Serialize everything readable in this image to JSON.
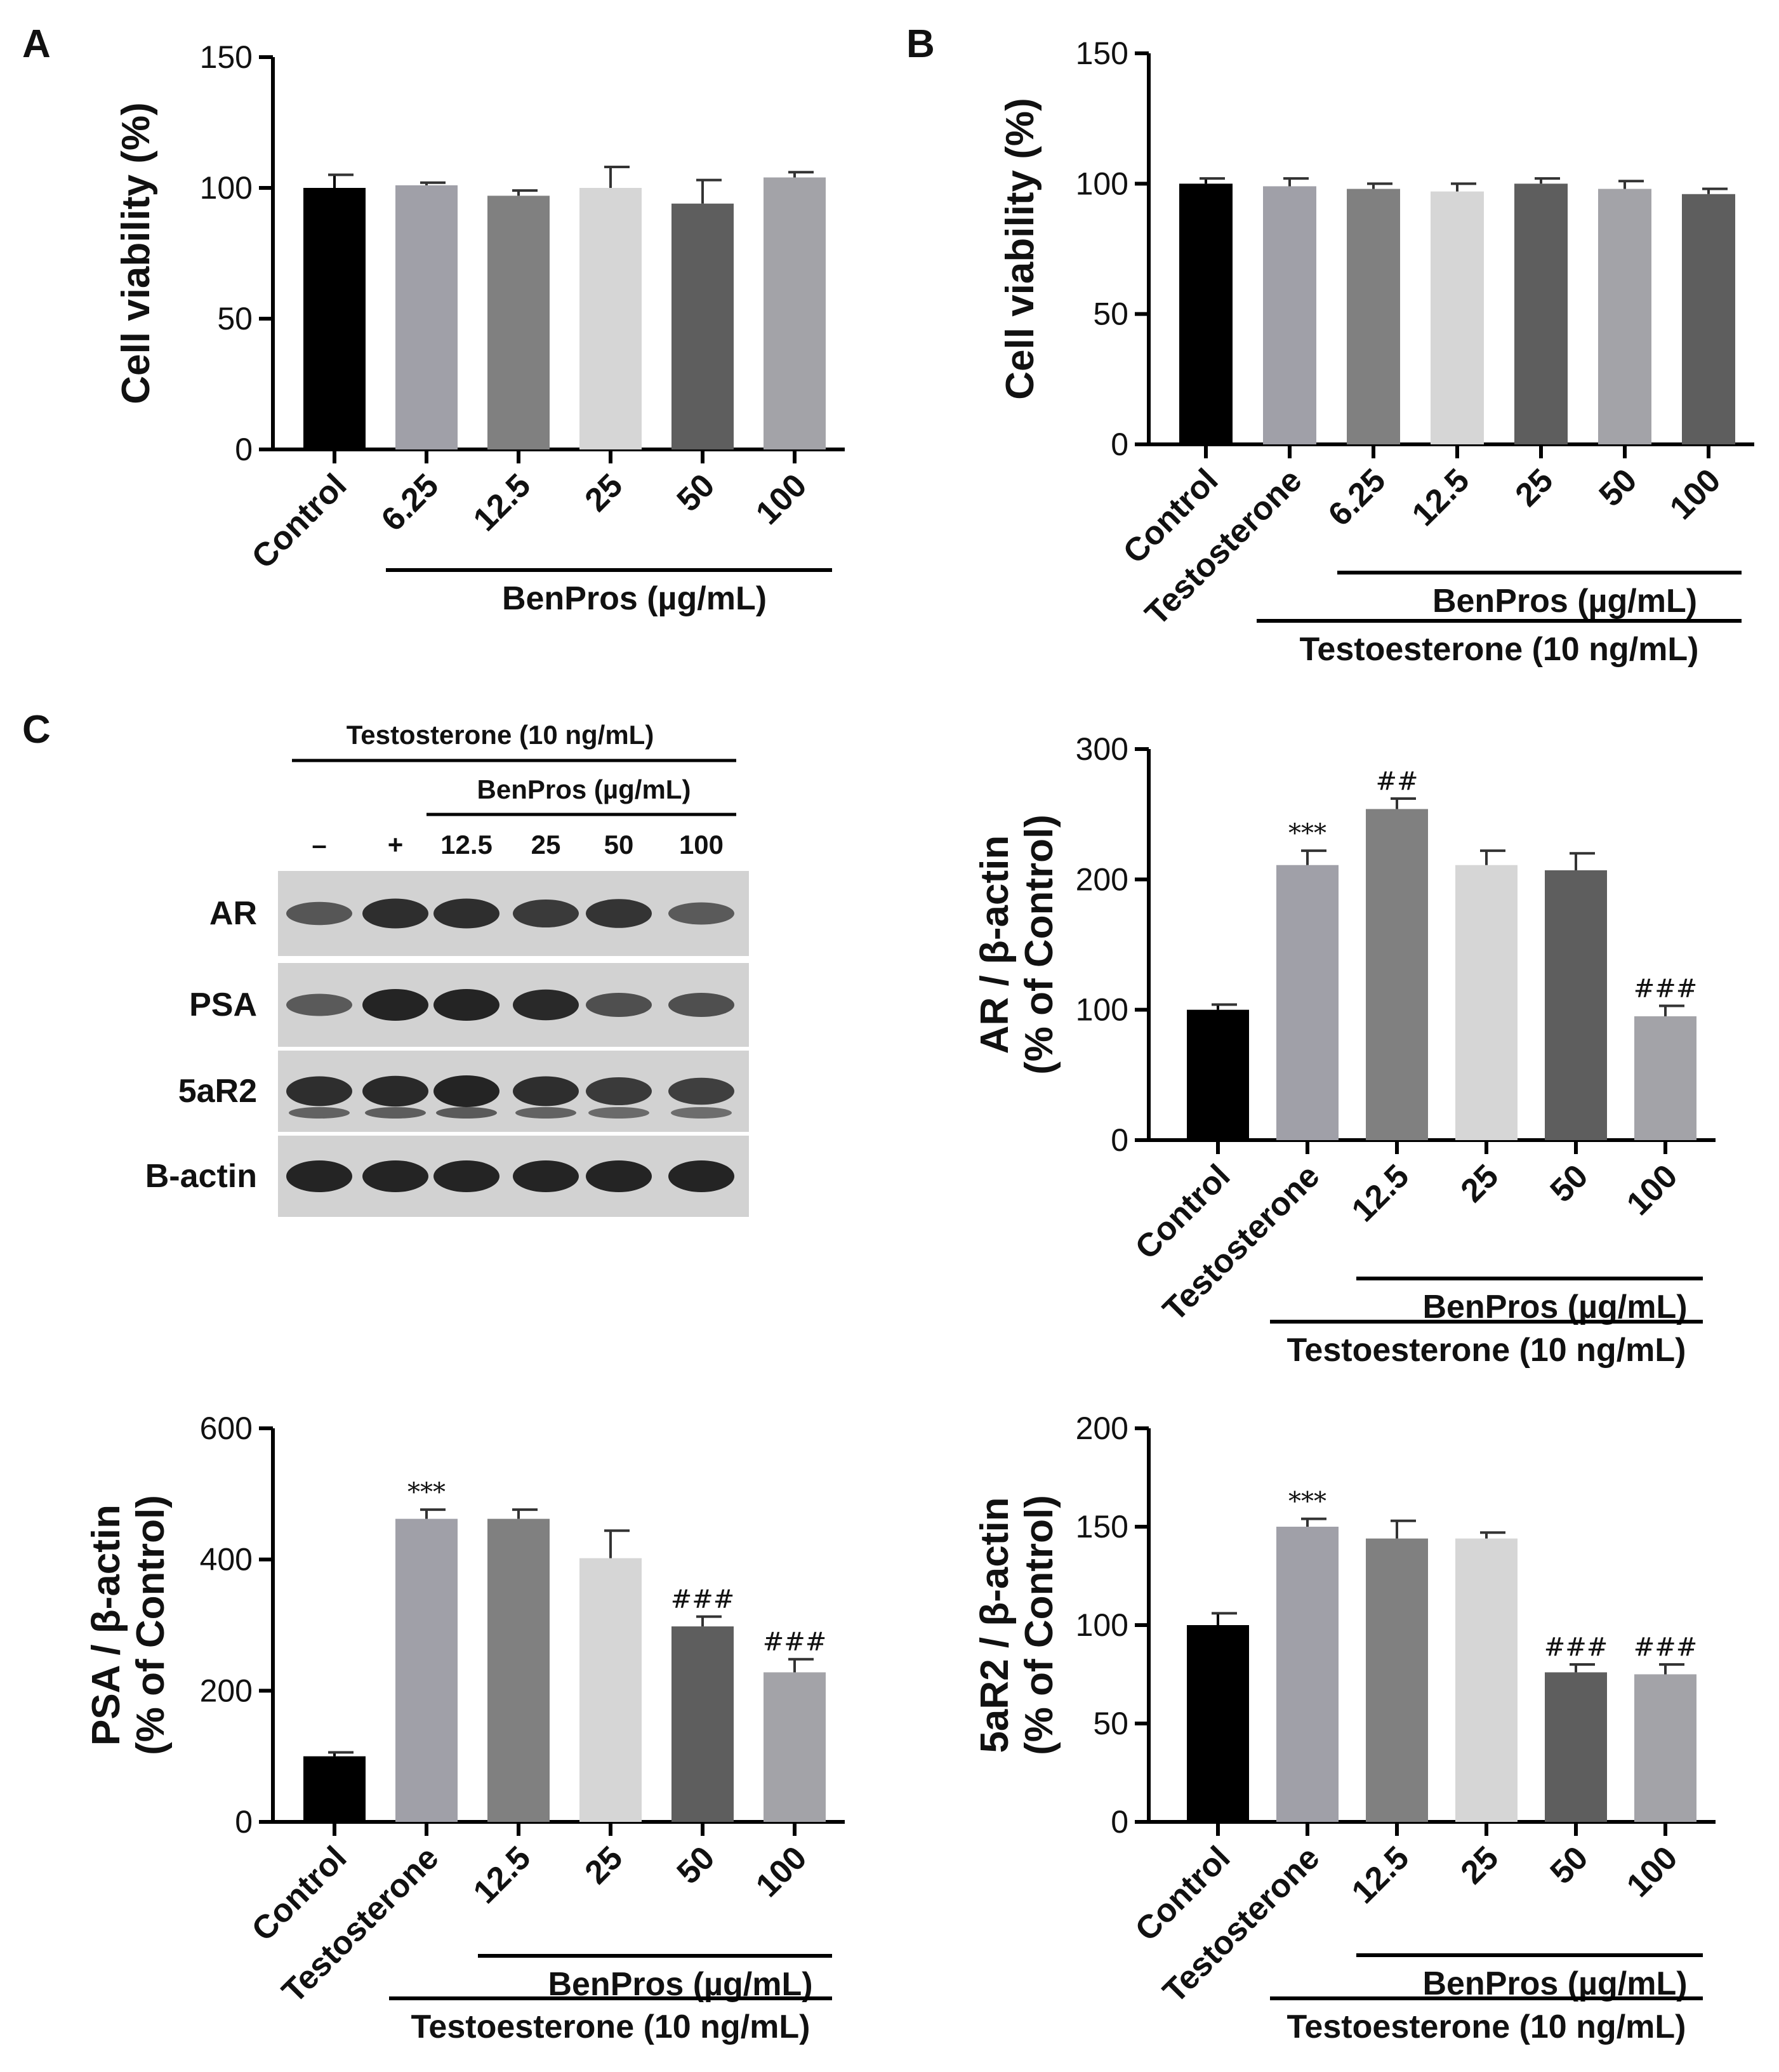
{
  "panels": {
    "a": "A",
    "b": "B",
    "c": "C"
  },
  "colors": {
    "black": "#000000",
    "light_gray": "#a0a0a8",
    "mid_gray": "#808080",
    "pale_gray": "#d6d6d6",
    "dark_gray": "#5e5e5e",
    "gray2": "#a3a3a8"
  },
  "blot": {
    "header": "Testosterone (10 ng/mL)",
    "sub_header": "BenPros (µg/mL)",
    "lanes": [
      "–",
      "+",
      "12.5",
      "25",
      "50",
      "100"
    ],
    "rows": [
      "AR",
      "PSA",
      "5aR2",
      "B-actin"
    ]
  },
  "chart_data": [
    {
      "id": "A",
      "type": "bar",
      "ylabel": "Cell viability (%)",
      "ylim": [
        0,
        150
      ],
      "yticks": [
        0,
        50,
        100,
        150
      ],
      "categories": [
        "Control",
        "6.25",
        "12.5",
        "25",
        "50",
        "100"
      ],
      "values": [
        100,
        101,
        97,
        100,
        94,
        104
      ],
      "errors": [
        5,
        1,
        2,
        8,
        9,
        2
      ],
      "bar_colors": [
        "#000000",
        "#a0a0a8",
        "#808080",
        "#d6d6d6",
        "#5e5e5e",
        "#a3a3a8"
      ],
      "annotations": [
        "",
        "",
        "",
        "",
        "",
        ""
      ],
      "groups": [
        {
          "label": "BenPros (µg/mL)",
          "from": 1,
          "to": 5
        }
      ]
    },
    {
      "id": "B",
      "type": "bar",
      "ylabel": "Cell viability (%)",
      "ylim": [
        0,
        150
      ],
      "yticks": [
        0,
        50,
        100,
        150
      ],
      "categories": [
        "Control",
        "Testosterone",
        "6.25",
        "12.5",
        "25",
        "50",
        "100"
      ],
      "values": [
        100,
        99,
        98,
        97,
        100,
        98,
        96
      ],
      "errors": [
        2,
        3,
        2,
        3,
        2,
        3,
        2
      ],
      "bar_colors": [
        "#000000",
        "#a0a0a8",
        "#808080",
        "#d6d6d6",
        "#5e5e5e",
        "#a3a3a8",
        "#5e5e5e"
      ],
      "annotations": [
        "",
        "",
        "",
        "",
        "",
        "",
        ""
      ],
      "groups": [
        {
          "label": "BenPros (µg/mL)",
          "from": 2,
          "to": 6
        },
        {
          "label": "Testoesterone (10 ng/mL)",
          "from": 1,
          "to": 6
        }
      ]
    },
    {
      "id": "AR",
      "type": "bar",
      "ylabel": "AR / β-actin",
      "ylabel2": "(% of Control)",
      "ylim": [
        0,
        300
      ],
      "yticks": [
        0,
        100,
        200,
        300
      ],
      "categories": [
        "Control",
        "Testosterone",
        "12.5",
        "25",
        "50",
        "100"
      ],
      "values": [
        100,
        211,
        254,
        211,
        207,
        95
      ],
      "errors": [
        4,
        11,
        8,
        11,
        13,
        8
      ],
      "bar_colors": [
        "#000000",
        "#a0a0a8",
        "#808080",
        "#d6d6d6",
        "#5e5e5e",
        "#a3a3a8"
      ],
      "annotations": [
        "",
        "***",
        "##",
        "",
        "",
        "###"
      ],
      "groups": [
        {
          "label": "BenPros (µg/mL)",
          "from": 2,
          "to": 5
        },
        {
          "label": "Testoesterone (10 ng/mL)",
          "from": 1,
          "to": 5
        }
      ]
    },
    {
      "id": "PSA",
      "type": "bar",
      "ylabel": "PSA / β-actin",
      "ylabel2": "(% of Control)",
      "ylim": [
        0,
        600
      ],
      "yticks": [
        0,
        200,
        400,
        600
      ],
      "categories": [
        "Control",
        "Testosterone",
        "12.5",
        "25",
        "50",
        "100"
      ],
      "values": [
        100,
        462,
        462,
        402,
        298,
        228
      ],
      "errors": [
        6,
        14,
        14,
        42,
        15,
        20
      ],
      "bar_colors": [
        "#000000",
        "#a0a0a8",
        "#808080",
        "#d6d6d6",
        "#5e5e5e",
        "#a3a3a8"
      ],
      "annotations": [
        "",
        "***",
        "",
        "",
        "###",
        "###"
      ],
      "groups": [
        {
          "label": "BenPros (µg/mL)",
          "from": 2,
          "to": 5
        },
        {
          "label": "Testoesterone (10 ng/mL)",
          "from": 1,
          "to": 5
        }
      ]
    },
    {
      "id": "5aR2",
      "type": "bar",
      "ylabel": "5aR2 / β-actin",
      "ylabel2": "(% of Control)",
      "ylim": [
        0,
        200
      ],
      "yticks": [
        0,
        50,
        100,
        150,
        200
      ],
      "categories": [
        "Control",
        "Testosterone",
        "12.5",
        "25",
        "50",
        "100"
      ],
      "values": [
        100,
        150,
        144,
        144,
        76,
        75
      ],
      "errors": [
        6,
        4,
        9,
        3,
        4,
        5
      ],
      "bar_colors": [
        "#000000",
        "#a0a0a8",
        "#808080",
        "#d6d6d6",
        "#5e5e5e",
        "#a3a3a8"
      ],
      "annotations": [
        "",
        "***",
        "",
        "",
        "###",
        "###"
      ],
      "groups": [
        {
          "label": "BenPros (µg/mL)",
          "from": 2,
          "to": 5
        },
        {
          "label": "Testoesterone (10 ng/mL)",
          "from": 1,
          "to": 5
        }
      ]
    }
  ]
}
